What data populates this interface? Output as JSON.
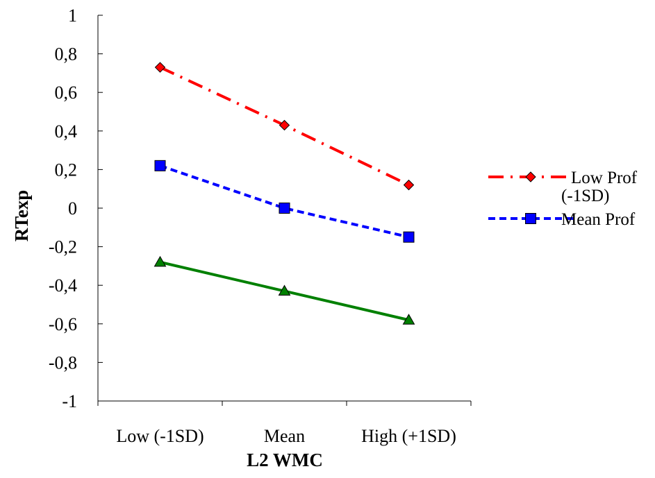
{
  "chart_data": {
    "type": "line",
    "title": "",
    "xlabel": "L2 WMC",
    "ylabel": "RTexp",
    "categories": [
      "Low (-1SD)",
      "Mean",
      "High (+1SD)"
    ],
    "ylim": [
      -1,
      1
    ],
    "yticks": [
      1,
      0.8,
      0.6,
      0.4,
      0.2,
      0,
      -0.2,
      -0.4,
      -0.6,
      -0.8,
      -1
    ],
    "ytick_labels": [
      "1",
      "0,8",
      "0,6",
      "0,4",
      "0,2",
      "0",
      "-0,2",
      "-0,4",
      "-0,6",
      "-0,8",
      "-1"
    ],
    "grid": false,
    "legend_position": "right",
    "series": [
      {
        "name": "Low Prof (-1SD)",
        "legend_lines": [
          "Low Prof",
          "(-1SD)"
        ],
        "values": [
          0.73,
          0.43,
          0.12
        ],
        "color": "#ff0000",
        "marker": "diamond",
        "dash": "dashdot"
      },
      {
        "name": "Mean Prof",
        "legend_lines": [
          "Mean Prof"
        ],
        "values": [
          0.22,
          0.0,
          -0.15
        ],
        "color": "#0000ff",
        "marker": "square",
        "dash": "dashed"
      },
      {
        "name": "",
        "legend_lines": [],
        "values": [
          -0.28,
          -0.43,
          -0.58
        ],
        "color": "#008000",
        "marker": "triangle",
        "dash": "solid"
      }
    ]
  }
}
